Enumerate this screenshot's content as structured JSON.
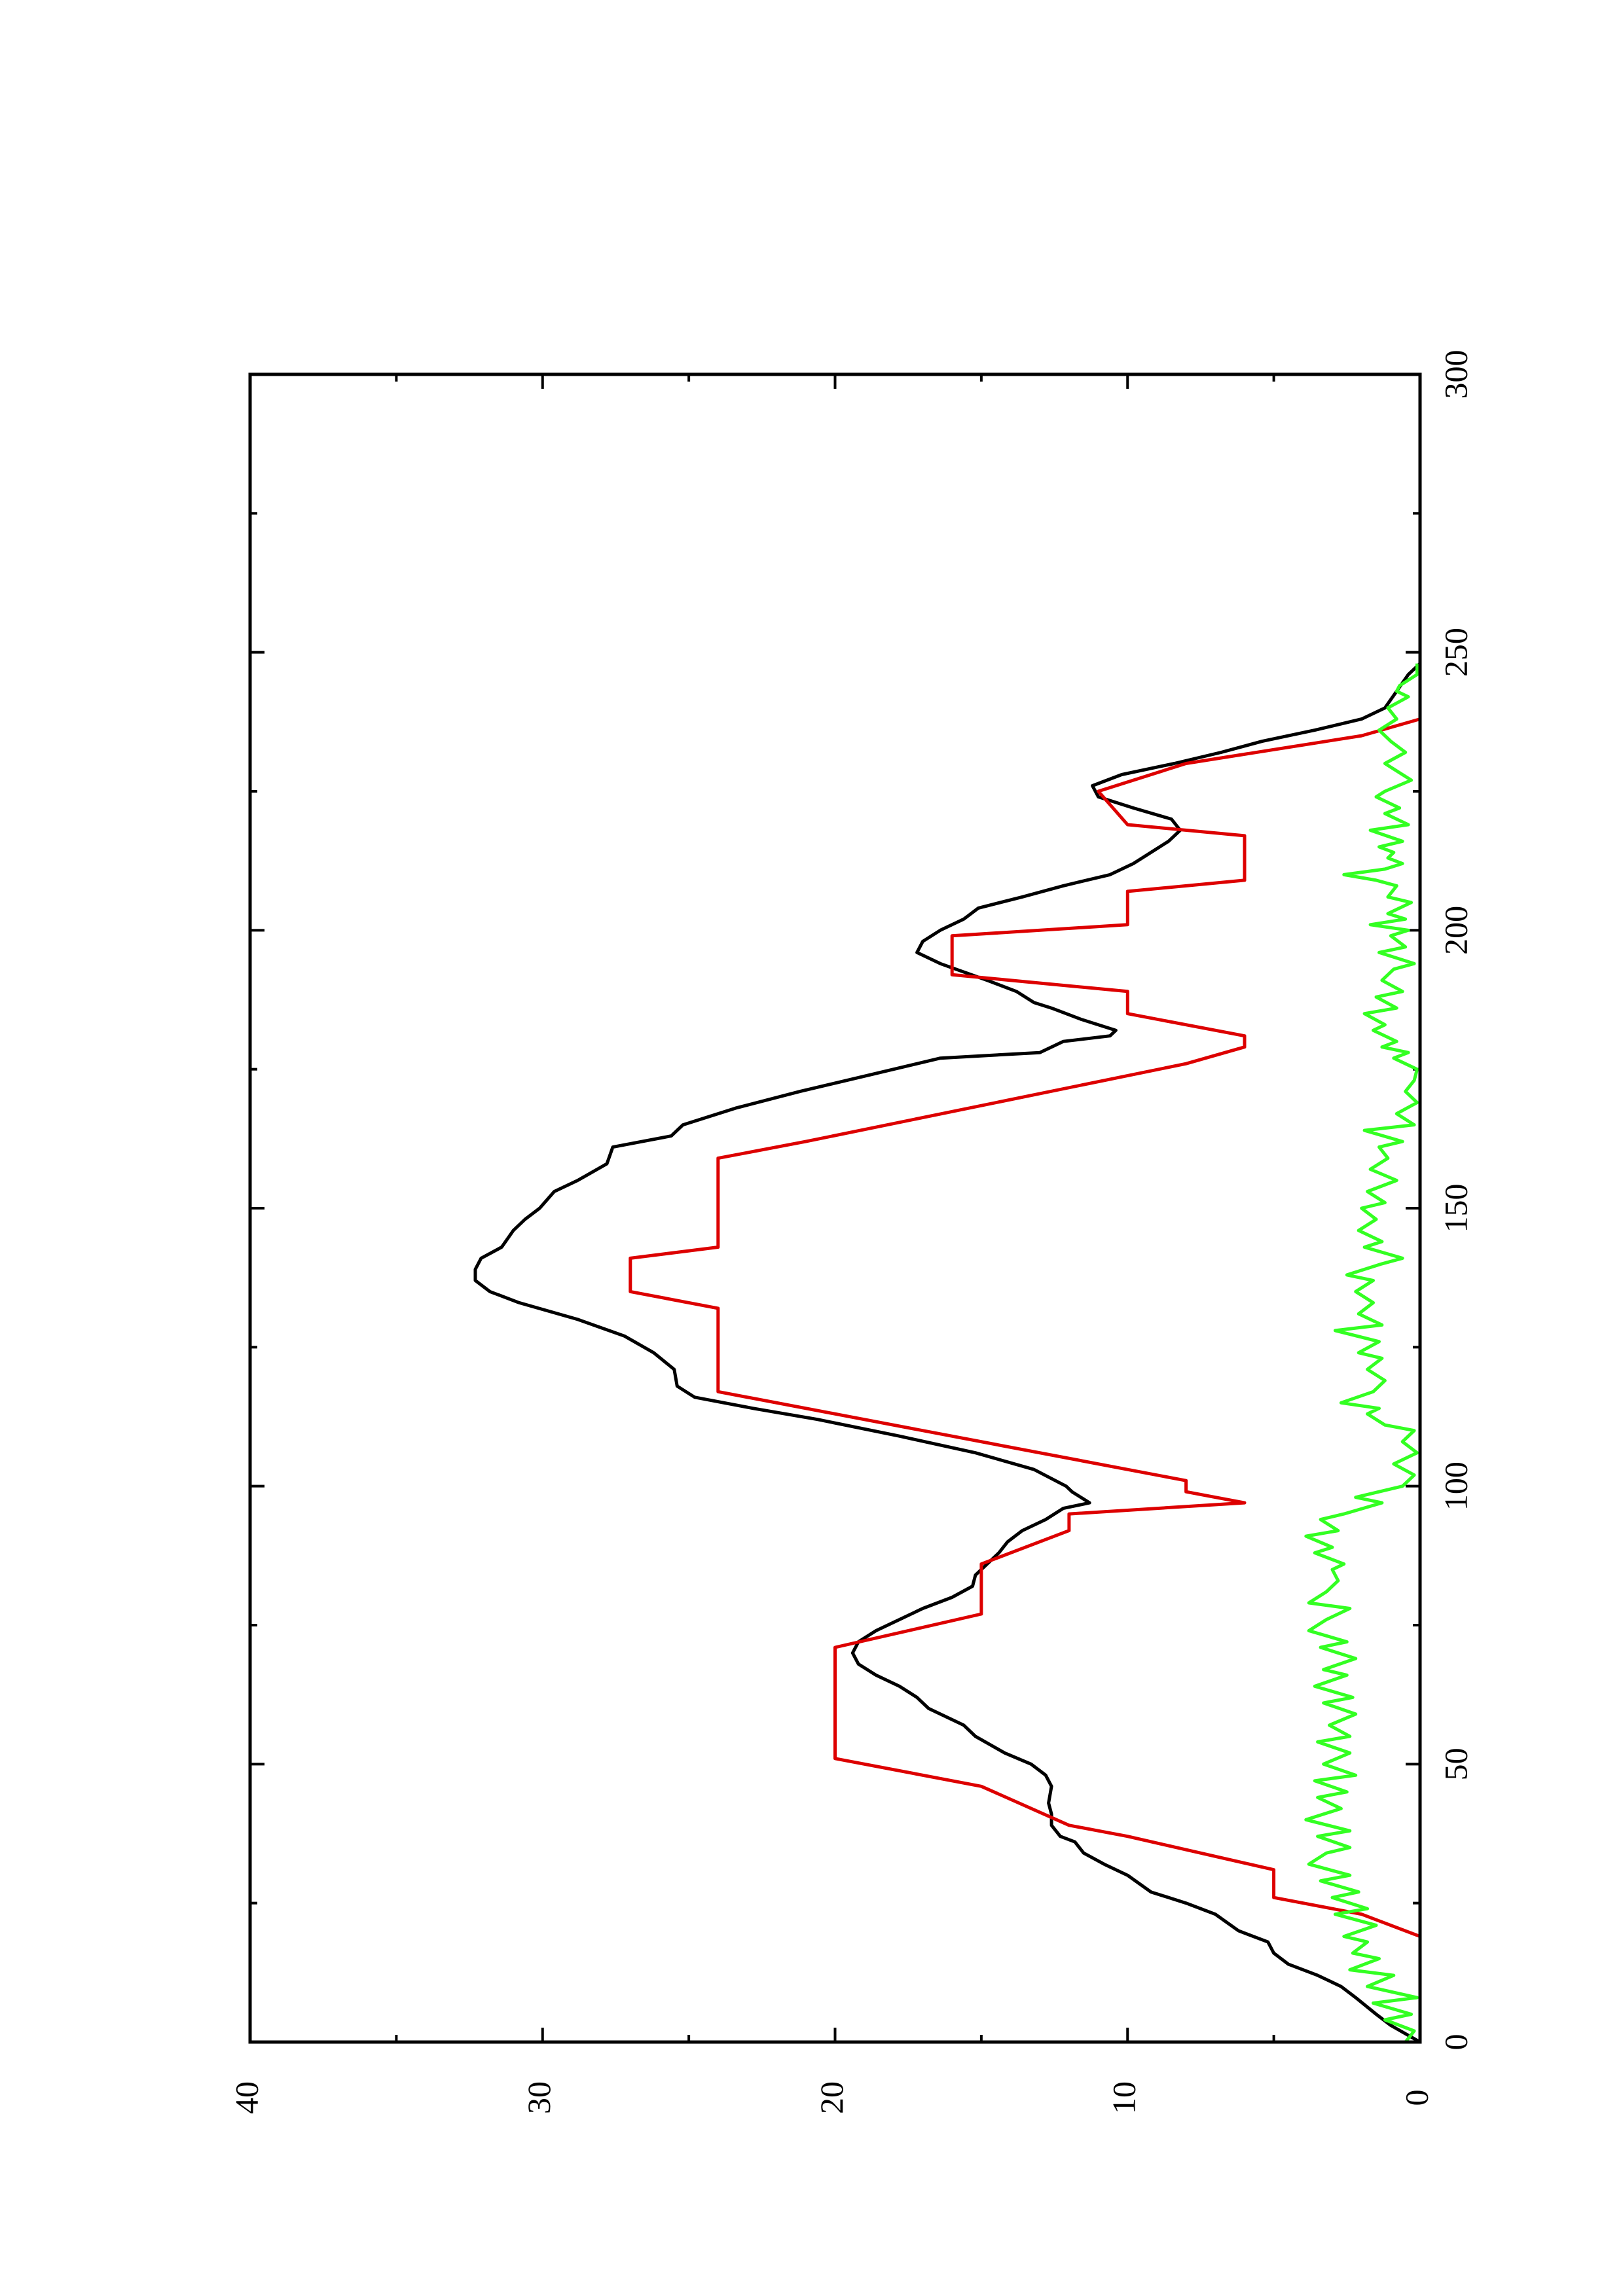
{
  "chart_data": {
    "type": "line",
    "orientation": "rotated 90 degrees counter-clockwise (x axis runs vertically, y axis horizontally)",
    "title": "",
    "xlabel": "",
    "ylabel": "",
    "xlim": [
      0,
      300
    ],
    "ylim": [
      0,
      40
    ],
    "x_ticks": [
      0,
      50,
      100,
      150,
      200,
      250,
      300
    ],
    "y_ticks": [
      0,
      10,
      20,
      30,
      40
    ],
    "grid": false,
    "legend": "none",
    "series": [
      {
        "color": "#000000",
        "points": [
          [
            0,
            0
          ],
          [
            3,
            1
          ],
          [
            5,
            1.5
          ],
          [
            8,
            2.2
          ],
          [
            10,
            2.7
          ],
          [
            12,
            3.5
          ],
          [
            14,
            4.5
          ],
          [
            16,
            5
          ],
          [
            18,
            5.2
          ],
          [
            20,
            6.2
          ],
          [
            23,
            7
          ],
          [
            25,
            8
          ],
          [
            27,
            9.2
          ],
          [
            30,
            10
          ],
          [
            32,
            10.8
          ],
          [
            34,
            11.5
          ],
          [
            36,
            11.8
          ],
          [
            37,
            12.3
          ],
          [
            39,
            12.6
          ],
          [
            41,
            12.6
          ],
          [
            43,
            12.7
          ],
          [
            46,
            12.6
          ],
          [
            48,
            12.8
          ],
          [
            50,
            13.3
          ],
          [
            52,
            14.2
          ],
          [
            55,
            15.2
          ],
          [
            57,
            15.6
          ],
          [
            60,
            16.8
          ],
          [
            62,
            17.2
          ],
          [
            64,
            17.8
          ],
          [
            66,
            18.6
          ],
          [
            68,
            19.2
          ],
          [
            70,
            19.4
          ],
          [
            72,
            19.2
          ],
          [
            74,
            18.6
          ],
          [
            76,
            17.8
          ],
          [
            78,
            17
          ],
          [
            80,
            16
          ],
          [
            82,
            15.3
          ],
          [
            84,
            15.2
          ],
          [
            86,
            14.8
          ],
          [
            88,
            14.4
          ],
          [
            90,
            14.1
          ],
          [
            92,
            13.6
          ],
          [
            94,
            12.8
          ],
          [
            96,
            12.2
          ],
          [
            97,
            11.3
          ],
          [
            99,
            11.9
          ],
          [
            100,
            12.1
          ],
          [
            103,
            13.2
          ],
          [
            106,
            15.2
          ],
          [
            109,
            17.8
          ],
          [
            112,
            20.6
          ],
          [
            114,
            22.8
          ],
          [
            116,
            24.8
          ],
          [
            118,
            25.4
          ],
          [
            121,
            25.5
          ],
          [
            124,
            26.2
          ],
          [
            127,
            27.2
          ],
          [
            130,
            28.8
          ],
          [
            133,
            30.8
          ],
          [
            135,
            31.8
          ],
          [
            137,
            32.3
          ],
          [
            139,
            32.3
          ],
          [
            141,
            32.1
          ],
          [
            143,
            31.4
          ],
          [
            146,
            31
          ],
          [
            148,
            30.6
          ],
          [
            150,
            30.1
          ],
          [
            153,
            29.6
          ],
          [
            155,
            28.8
          ],
          [
            158,
            27.8
          ],
          [
            161,
            27.6
          ],
          [
            163,
            25.6
          ],
          [
            165,
            25.2
          ],
          [
            168,
            23.4
          ],
          [
            171,
            21.2
          ],
          [
            174,
            18.8
          ],
          [
            177,
            16.4
          ],
          [
            178,
            13
          ],
          [
            180,
            12.2
          ],
          [
            181,
            10.6
          ],
          [
            182,
            10.4
          ],
          [
            184,
            11.6
          ],
          [
            186,
            12.6
          ],
          [
            187,
            13.2
          ],
          [
            189,
            13.8
          ],
          [
            191,
            14.8
          ],
          [
            194,
            16.4
          ],
          [
            196,
            17.2
          ],
          [
            198,
            17
          ],
          [
            200,
            16.4
          ],
          [
            202,
            15.6
          ],
          [
            204,
            15.1
          ],
          [
            206,
            13.6
          ],
          [
            208,
            12.2
          ],
          [
            210,
            10.6
          ],
          [
            212,
            9.8
          ],
          [
            214,
            9.2
          ],
          [
            216,
            8.6
          ],
          [
            218,
            8.2
          ],
          [
            220,
            8.5
          ],
          [
            222,
            9.8
          ],
          [
            224,
            11
          ],
          [
            226,
            11.2
          ],
          [
            228,
            10.2
          ],
          [
            230,
            8.4
          ],
          [
            232,
            6.8
          ],
          [
            234,
            5.4
          ],
          [
            236,
            3.6
          ],
          [
            238,
            2
          ],
          [
            240,
            1.2
          ],
          [
            243,
            0.8
          ],
          [
            246,
            0.4
          ],
          [
            248,
            0
          ]
        ]
      },
      {
        "color": "#dd0000",
        "points": [
          [
            0,
            0
          ],
          [
            19,
            0
          ],
          [
            23,
            2
          ],
          [
            26,
            5
          ],
          [
            31,
            5
          ],
          [
            37,
            10
          ],
          [
            39,
            12
          ],
          [
            46,
            15
          ],
          [
            51,
            20
          ],
          [
            71,
            20
          ],
          [
            77,
            15
          ],
          [
            86,
            15
          ],
          [
            92,
            12
          ],
          [
            95,
            12
          ],
          [
            97,
            6
          ],
          [
            99,
            8
          ],
          [
            101,
            8
          ],
          [
            117,
            24
          ],
          [
            132,
            24
          ],
          [
            135,
            27
          ],
          [
            141,
            27
          ],
          [
            143,
            24
          ],
          [
            159,
            24
          ],
          [
            162,
            21
          ],
          [
            176,
            8
          ],
          [
            179,
            6
          ],
          [
            181,
            6
          ],
          [
            185,
            10
          ],
          [
            189,
            10
          ],
          [
            192,
            16
          ],
          [
            199,
            16
          ],
          [
            201,
            10
          ],
          [
            207,
            10
          ],
          [
            209,
            6
          ],
          [
            217,
            6
          ],
          [
            219,
            10
          ],
          [
            225,
            11
          ],
          [
            230,
            8
          ],
          [
            235,
            2
          ],
          [
            238,
            0
          ],
          [
            248,
            0
          ]
        ]
      },
      {
        "color": "#33ff22",
        "points": [
          [
            0,
            0.5
          ],
          [
            2,
            0.2
          ],
          [
            4,
            1.2
          ],
          [
            5,
            0.3
          ],
          [
            7,
            1.6
          ],
          [
            8,
            0.1
          ],
          [
            10,
            1.8
          ],
          [
            12,
            0.9
          ],
          [
            13,
            2.4
          ],
          [
            15,
            1.4
          ],
          [
            16,
            2.3
          ],
          [
            18,
            1.8
          ],
          [
            19,
            2.6
          ],
          [
            21,
            1.5
          ],
          [
            23,
            2.9
          ],
          [
            24,
            1.8
          ],
          [
            26,
            3
          ],
          [
            27,
            2.1
          ],
          [
            29,
            3.4
          ],
          [
            30,
            2.4
          ],
          [
            32,
            3.8
          ],
          [
            34,
            3.2
          ],
          [
            35,
            2.4
          ],
          [
            37,
            3.5
          ],
          [
            38,
            2.4
          ],
          [
            40,
            3.9
          ],
          [
            42,
            2.7
          ],
          [
            44,
            3.5
          ],
          [
            45,
            2.5
          ],
          [
            47,
            3.6
          ],
          [
            48,
            2.2
          ],
          [
            50,
            3.3
          ],
          [
            52,
            2.4
          ],
          [
            54,
            3.5
          ],
          [
            55,
            2.4
          ],
          [
            57,
            3.1
          ],
          [
            59,
            2.2
          ],
          [
            61,
            3.3
          ],
          [
            62,
            2.3
          ],
          [
            64,
            3.6
          ],
          [
            66,
            2.5
          ],
          [
            67,
            3.3
          ],
          [
            69,
            2.2
          ],
          [
            71,
            3.4
          ],
          [
            72,
            2.5
          ],
          [
            74,
            3.8
          ],
          [
            76,
            3.2
          ],
          [
            78,
            2.4
          ],
          [
            79,
            3.8
          ],
          [
            81,
            3.2
          ],
          [
            83,
            2.8
          ],
          [
            85,
            3
          ],
          [
            86,
            2.6
          ],
          [
            88,
            3.6
          ],
          [
            89,
            3
          ],
          [
            91,
            3.9
          ],
          [
            92,
            2.8
          ],
          [
            94,
            3.4
          ],
          [
            95,
            2.6
          ],
          [
            97,
            1.3
          ],
          [
            98,
            2.2
          ],
          [
            100,
            0.6
          ],
          [
            102,
            0.2
          ],
          [
            104,
            0.9
          ],
          [
            106,
            0.1
          ],
          [
            108,
            0.6
          ],
          [
            110,
            0.2
          ],
          [
            111,
            1.2
          ],
          [
            113,
            1.8
          ],
          [
            114,
            1.4
          ],
          [
            115,
            2.7
          ],
          [
            117,
            1.6
          ],
          [
            119,
            1.2
          ],
          [
            121,
            1.8
          ],
          [
            123,
            1.3
          ],
          [
            124,
            2.1
          ],
          [
            126,
            1.4
          ],
          [
            128,
            2.9
          ],
          [
            129,
            1.3
          ],
          [
            131,
            2.1
          ],
          [
            133,
            1.6
          ],
          [
            135,
            2.2
          ],
          [
            137,
            1.6
          ],
          [
            138,
            2.5
          ],
          [
            140,
            1.3
          ],
          [
            141,
            0.6
          ],
          [
            143,
            1.9
          ],
          [
            144,
            1.3
          ],
          [
            146,
            2.1
          ],
          [
            148,
            1.5
          ],
          [
            150,
            2
          ],
          [
            151,
            1.2
          ],
          [
            153,
            1.8
          ],
          [
            155,
            0.8
          ],
          [
            157,
            1.7
          ],
          [
            159,
            1.1
          ],
          [
            161,
            1.4
          ],
          [
            162,
            0.6
          ],
          [
            164,
            1.9
          ],
          [
            165,
            0.2
          ],
          [
            167,
            0.8
          ],
          [
            169,
            0.1
          ],
          [
            171,
            0.5
          ],
          [
            173,
            0.2
          ],
          [
            175,
            0.1
          ],
          [
            177,
            0.9
          ],
          [
            178,
            0.4
          ],
          [
            179,
            1.3
          ],
          [
            180,
            0.8
          ],
          [
            182,
            1.6
          ],
          [
            183,
            1.2
          ],
          [
            185,
            1.9
          ],
          [
            186,
            0.8
          ],
          [
            188,
            1.5
          ],
          [
            189,
            0.6
          ],
          [
            191,
            1.3
          ],
          [
            193,
            0.9
          ],
          [
            194,
            0.2
          ],
          [
            196,
            1.4
          ],
          [
            197,
            0.5
          ],
          [
            199,
            1
          ],
          [
            200,
            0.4
          ],
          [
            201,
            1.7
          ],
          [
            202,
            0.5
          ],
          [
            203,
            1.1
          ],
          [
            205,
            0.3
          ],
          [
            206,
            1.1
          ],
          [
            208,
            0.8
          ],
          [
            209,
            1.5
          ],
          [
            210,
            2.6
          ],
          [
            211,
            1.2
          ],
          [
            212,
            0.6
          ],
          [
            213,
            1.1
          ],
          [
            214,
            0.9
          ],
          [
            215,
            1.4
          ],
          [
            216,
            0.6
          ],
          [
            218,
            1.7
          ],
          [
            219,
            0.4
          ],
          [
            221,
            1.2
          ],
          [
            222,
            0.7
          ],
          [
            224,
            1.5
          ],
          [
            225,
            1.2
          ],
          [
            227,
            0.3
          ],
          [
            229,
            0.9
          ],
          [
            230,
            1.2
          ],
          [
            232,
            0.5
          ],
          [
            234,
            1
          ],
          [
            236,
            1.4
          ],
          [
            238,
            0.8
          ],
          [
            240,
            1.1
          ],
          [
            242,
            0.4
          ],
          [
            243,
            0.8
          ],
          [
            244,
            0.7
          ],
          [
            246,
            0.1
          ],
          [
            248,
            0.1
          ]
        ]
      }
    ]
  }
}
